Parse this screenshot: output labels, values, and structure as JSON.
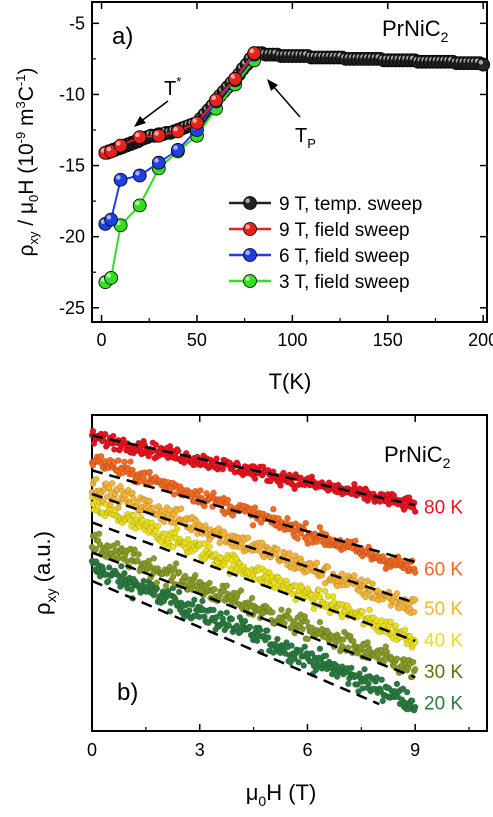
{
  "chart_data": [
    {
      "type": "line",
      "panel_label": "a)",
      "compound": {
        "base": "PrNiC",
        "sub": "2"
      },
      "xlabel": "T(K)",
      "ylabel": {
        "p1": "ρ",
        "s1": "xy",
        "p2": " / μ",
        "s2": "0",
        "p3": "H (10",
        "sup1": "-9",
        "p4": " m",
        "sup2": "3",
        "p5": "C",
        "sup3": "-1",
        "p6": ")"
      },
      "xlim": [
        -5,
        202
      ],
      "ylim": [
        -26,
        -3.5
      ],
      "xticks": [
        0,
        50,
        100,
        150,
        200
      ],
      "yticks": [
        -5,
        -10,
        -15,
        -20,
        -25
      ],
      "grid": false,
      "legend_position": "lower-right",
      "annotations": [
        {
          "id": "tstar",
          "base": "T",
          "sup": "*"
        },
        {
          "id": "tp",
          "base": "T",
          "sub": "P"
        }
      ],
      "series": [
        {
          "name": "9 T, temp. sweep",
          "color": "#222222",
          "x": [
            2,
            3,
            4,
            5,
            6,
            7,
            8,
            9,
            10,
            11,
            12,
            13,
            14,
            15,
            16,
            17,
            18,
            19,
            20,
            22,
            24,
            26,
            28,
            30,
            32,
            34,
            36,
            38,
            40,
            42,
            44,
            46,
            48,
            50,
            52,
            54,
            56,
            58,
            60,
            62,
            64,
            66,
            68,
            70,
            72,
            74,
            76,
            78,
            80,
            82,
            84,
            86,
            88,
            90,
            92,
            94,
            96,
            98,
            100,
            102,
            104,
            106,
            108,
            110,
            112,
            114,
            116,
            118,
            120,
            122,
            124,
            126,
            128,
            130,
            132,
            134,
            136,
            138,
            140,
            142,
            144,
            146,
            148,
            150,
            152,
            154,
            156,
            158,
            160,
            162,
            164,
            166,
            168,
            170,
            172,
            174,
            176,
            178,
            180,
            182,
            184,
            186,
            188,
            190,
            192,
            194,
            196,
            198,
            200
          ],
          "y": [
            -14.1,
            -14.1,
            -14.0,
            -14.0,
            -13.9,
            -13.9,
            -13.8,
            -13.8,
            -13.7,
            -13.7,
            -13.6,
            -13.6,
            -13.5,
            -13.5,
            -13.4,
            -13.4,
            -13.3,
            -13.3,
            -13.2,
            -13.1,
            -13.0,
            -12.9,
            -12.9,
            -12.8,
            -12.8,
            -12.7,
            -12.7,
            -12.6,
            -12.5,
            -12.4,
            -12.3,
            -12.2,
            -12.1,
            -12.0,
            -11.7,
            -11.4,
            -11.1,
            -10.8,
            -10.4,
            -10.1,
            -9.8,
            -9.5,
            -9.2,
            -8.9,
            -8.6,
            -8.2,
            -7.9,
            -7.5,
            -7.1,
            -7.1,
            -7.1,
            -7.2,
            -7.2,
            -7.2,
            -7.2,
            -7.3,
            -7.3,
            -7.3,
            -7.3,
            -7.3,
            -7.3,
            -7.3,
            -7.3,
            -7.4,
            -7.4,
            -7.4,
            -7.4,
            -7.4,
            -7.4,
            -7.4,
            -7.4,
            -7.4,
            -7.5,
            -7.5,
            -7.5,
            -7.5,
            -7.5,
            -7.5,
            -7.5,
            -7.5,
            -7.5,
            -7.5,
            -7.6,
            -7.6,
            -7.6,
            -7.6,
            -7.6,
            -7.6,
            -7.6,
            -7.6,
            -7.6,
            -7.7,
            -7.7,
            -7.7,
            -7.7,
            -7.7,
            -7.7,
            -7.7,
            -7.7,
            -7.7,
            -7.7,
            -7.8,
            -7.8,
            -7.8,
            -7.8,
            -7.8,
            -7.8,
            -7.8,
            -7.9
          ]
        },
        {
          "name": "9 T, field sweep",
          "color": "#e8221a",
          "x": [
            2,
            5,
            10,
            20,
            30,
            40,
            50,
            60,
            70,
            80
          ],
          "y": [
            -14.1,
            -14.0,
            -13.6,
            -13.0,
            -12.9,
            -12.6,
            -12.0,
            -10.4,
            -8.9,
            -7.1
          ]
        },
        {
          "name": "6 T, field sweep",
          "color": "#1f3fe0",
          "x": [
            2,
            5,
            10,
            20,
            30,
            40,
            50,
            60,
            70,
            80
          ],
          "y": [
            -19.1,
            -18.8,
            -16.0,
            -15.7,
            -14.8,
            -13.9,
            -12.5,
            -10.5,
            -9.0,
            -7.2
          ]
        },
        {
          "name": "3 T, field sweep",
          "color": "#33dd22",
          "x": [
            2,
            5,
            10,
            20,
            30,
            40,
            50,
            60,
            70,
            80
          ],
          "y": [
            -23.2,
            -22.9,
            -19.2,
            -17.8,
            -15.2,
            -14.0,
            -12.9,
            -11.0,
            -9.3,
            -7.6
          ]
        }
      ]
    },
    {
      "type": "scatter",
      "panel_label": "b)",
      "compound": {
        "base": "PrNiC",
        "sub": "2"
      },
      "xlabel": {
        "p1": "μ",
        "s1": "0",
        "p2": "H (T)"
      },
      "ylabel": {
        "p1": "ρ",
        "s1": "xy",
        "p2": " (a.u.)"
      },
      "xlim": [
        0,
        11
      ],
      "ylim": [
        0,
        1
      ],
      "xticks": [
        0,
        3,
        6,
        9
      ],
      "yticks": [],
      "grid": false,
      "series": [
        {
          "name": "80 K",
          "color": "#e8141e",
          "y0": 0.93,
          "y9": 0.713,
          "noise": 0.022
        },
        {
          "name": "60 K",
          "color": "#f36a22",
          "y0": 0.86,
          "y9": 0.51,
          "noise": 0.026
        },
        {
          "name": "50 K",
          "color": "#f5b436",
          "y0": 0.776,
          "y9": 0.39,
          "noise": 0.03
        },
        {
          "name": "40 K",
          "color": "#e9de1a",
          "y0": 0.713,
          "y9": 0.29,
          "noise": 0.03
        },
        {
          "name": "30 K",
          "color": "#8a9a27",
          "y0": 0.592,
          "y9": 0.19,
          "noise": 0.033
        },
        {
          "name": "20 K",
          "color": "#2a7a3f",
          "y0": 0.52,
          "y9": 0.09,
          "noise": 0.035
        }
      ],
      "label_colors": {
        "80 K": "#e8141e",
        "60 K": "#f36a22",
        "50 K": "#f5b436",
        "40 K": "#e9de1a",
        "30 K": "#6b6b10",
        "20 K": "#2a7a3f"
      },
      "fit_lines": [
        {
          "y0": 0.935,
          "y_end": 0.715,
          "x_end": 9.0
        },
        {
          "y0": 0.825,
          "y_end": 0.535,
          "x_end": 9.0
        },
        {
          "y0": 0.75,
          "y_end": 0.405,
          "x_end": 9.0
        },
        {
          "y0": 0.66,
          "y_end": 0.285,
          "x_end": 9.0
        },
        {
          "y0": 0.565,
          "y_end": 0.17,
          "x_end": 9.0
        },
        {
          "y0": 0.475,
          "y_end": 0.085,
          "x_end": 8.0
        }
      ]
    }
  ]
}
